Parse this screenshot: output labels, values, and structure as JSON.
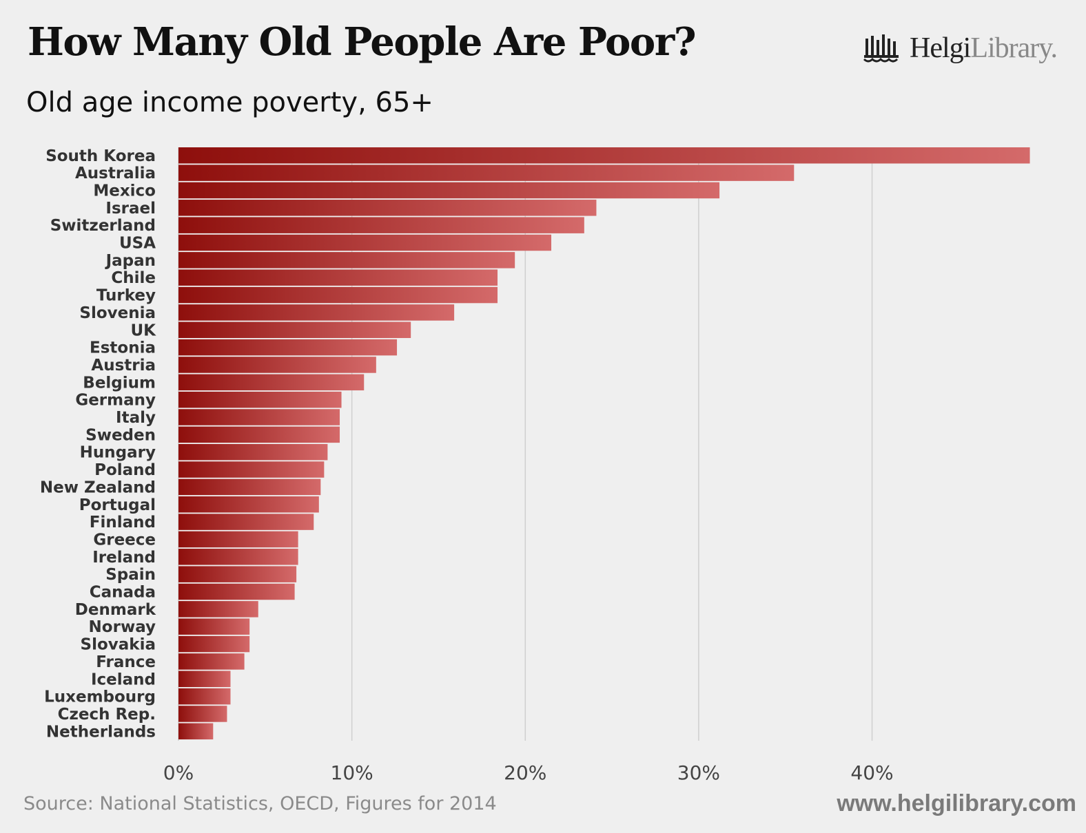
{
  "header": {
    "title": "How Many Old People Are Poor?",
    "subtitle": "Old age income poverty, 65+"
  },
  "brand": {
    "name_bold": "Helgi",
    "name_light": "Library.",
    "icon": "library-logo-icon"
  },
  "footer": {
    "source": "Source: National Statistics, OECD, Figures for 2014",
    "url": "www.helgilibrary.com"
  },
  "colors": {
    "bar_start": "#8e0f0c",
    "bar_end": "#d46a6a",
    "grid": "#cfcfcf",
    "label": "#333333",
    "tick": "#444444"
  },
  "chart_data": {
    "type": "bar",
    "orientation": "horizontal",
    "title": "How Many Old People Are Poor?",
    "subtitle": "Old age income poverty, 65+",
    "xlabel": "",
    "ylabel": "",
    "xlim": [
      0,
      49
    ],
    "x_ticks": [
      0,
      10,
      20,
      30,
      40
    ],
    "x_tick_labels": [
      "0%",
      "10%",
      "20%",
      "30%",
      "40%"
    ],
    "grid": true,
    "categories": [
      "South Korea",
      "Australia",
      "Mexico",
      "Israel",
      "Switzerland",
      "USA",
      "Japan",
      "Chile",
      "Turkey",
      "Slovenia",
      "UK",
      "Estonia",
      "Austria",
      "Belgium",
      "Germany",
      "Italy",
      "Sweden",
      "Hungary",
      "Poland",
      "New Zealand",
      "Portugal",
      "Finland",
      "Greece",
      "Ireland",
      "Spain",
      "Canada",
      "Denmark",
      "Norway",
      "Slovakia",
      "France",
      "Iceland",
      "Luxembourg",
      "Czech Rep.",
      "Netherlands"
    ],
    "values": [
      49.1,
      35.5,
      31.2,
      24.1,
      23.4,
      21.5,
      19.4,
      18.4,
      18.4,
      15.9,
      13.4,
      12.6,
      11.4,
      10.7,
      9.4,
      9.3,
      9.3,
      8.6,
      8.4,
      8.2,
      8.1,
      7.8,
      6.9,
      6.9,
      6.8,
      6.7,
      4.6,
      4.1,
      4.1,
      3.8,
      3.0,
      3.0,
      2.8,
      2.0
    ]
  }
}
